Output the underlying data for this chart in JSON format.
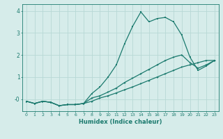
{
  "xlabel": "Humidex (Indice chaleur)",
  "ylabel": "",
  "xlim": [
    -0.5,
    23.5
  ],
  "ylim": [
    -0.55,
    4.3
  ],
  "xticks": [
    0,
    1,
    2,
    3,
    4,
    5,
    6,
    7,
    8,
    9,
    10,
    11,
    12,
    13,
    14,
    15,
    16,
    17,
    18,
    19,
    20,
    21,
    22,
    23
  ],
  "yticks": [
    0,
    1,
    2,
    3,
    4
  ],
  "ytick_labels": [
    "-0",
    "1",
    "2",
    "3",
    "4"
  ],
  "background_color": "#d6ecea",
  "line_color": "#1b7a6e",
  "grid_color": "#b8d8d5",
  "line1_x": [
    0,
    1,
    2,
    3,
    4,
    5,
    6,
    7,
    8,
    9,
    10,
    11,
    12,
    13,
    14,
    15,
    16,
    17,
    18,
    19,
    20,
    21,
    22,
    23
  ],
  "line1_y": [
    -0.1,
    -0.2,
    -0.1,
    -0.15,
    -0.3,
    -0.25,
    -0.25,
    -0.2,
    0.25,
    0.55,
    1.0,
    1.55,
    2.5,
    3.3,
    3.95,
    3.5,
    3.65,
    3.7,
    3.5,
    2.9,
    1.9,
    1.3,
    1.5,
    1.75
  ],
  "line2_x": [
    0,
    1,
    2,
    3,
    4,
    5,
    6,
    7,
    8,
    9,
    10,
    11,
    12,
    13,
    14,
    15,
    16,
    17,
    18,
    19,
    20,
    21,
    22,
    23
  ],
  "line2_y": [
    -0.1,
    -0.2,
    -0.1,
    -0.15,
    -0.3,
    -0.25,
    -0.25,
    -0.2,
    -0.1,
    0.05,
    0.15,
    0.28,
    0.42,
    0.55,
    0.7,
    0.85,
    1.0,
    1.15,
    1.3,
    1.45,
    1.55,
    1.65,
    1.75,
    1.75
  ],
  "line3_x": [
    0,
    1,
    2,
    3,
    4,
    5,
    6,
    7,
    8,
    9,
    10,
    11,
    12,
    13,
    14,
    15,
    16,
    17,
    18,
    19,
    20,
    21,
    22,
    23
  ],
  "line3_y": [
    -0.1,
    -0.2,
    -0.1,
    -0.15,
    -0.3,
    -0.25,
    -0.25,
    -0.2,
    0.05,
    0.15,
    0.32,
    0.5,
    0.75,
    0.95,
    1.15,
    1.35,
    1.55,
    1.75,
    1.9,
    2.0,
    1.65,
    1.4,
    1.55,
    1.75
  ]
}
